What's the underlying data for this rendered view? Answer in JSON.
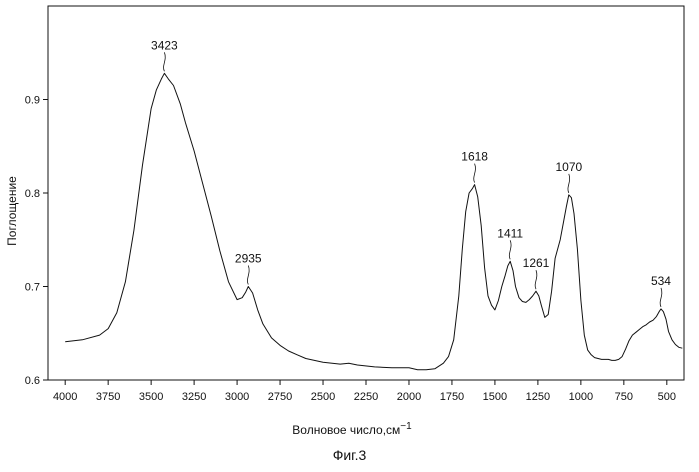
{
  "caption": "Фиг.3",
  "chart_data": {
    "type": "line",
    "title": "",
    "xlabel": "Волновое число,",
    "xlabel_unit": "см",
    "xlabel_unit_exp": "−1",
    "ylabel": "Поглощение",
    "xlim": [
      4100,
      400
    ],
    "ylim": [
      0.6,
      1.0
    ],
    "x_reversed": true,
    "grid": false,
    "x_ticks": [
      4000,
      3750,
      3500,
      3250,
      3000,
      2750,
      2500,
      2250,
      2000,
      1750,
      1500,
      1250,
      1000,
      750,
      500
    ],
    "x_tick_labels": [
      "4000",
      "3750",
      "3500",
      "3250",
      "3000",
      "2750",
      "2500",
      "2250",
      "2000",
      "1750",
      "1500",
      "1250",
      "1000",
      "750",
      "500"
    ],
    "y_ticks": [
      0.6,
      0.7,
      0.8,
      0.9
    ],
    "y_tick_labels": [
      "0.6",
      "0.7",
      "0.8",
      "0.9"
    ],
    "series": [
      {
        "color": "#111111",
        "x": [
          4000,
          3900,
          3800,
          3750,
          3700,
          3650,
          3600,
          3550,
          3500,
          3470,
          3440,
          3423,
          3400,
          3370,
          3330,
          3300,
          3250,
          3200,
          3150,
          3100,
          3050,
          3000,
          2970,
          2950,
          2935,
          2910,
          2880,
          2850,
          2800,
          2750,
          2700,
          2650,
          2600,
          2500,
          2400,
          2350,
          2300,
          2200,
          2100,
          2000,
          1950,
          1900,
          1850,
          1800,
          1770,
          1740,
          1710,
          1690,
          1670,
          1650,
          1630,
          1618,
          1600,
          1580,
          1560,
          1540,
          1520,
          1500,
          1480,
          1460,
          1440,
          1425,
          1411,
          1395,
          1380,
          1360,
          1340,
          1320,
          1300,
          1280,
          1261,
          1245,
          1230,
          1210,
          1190,
          1170,
          1150,
          1120,
          1100,
          1085,
          1070,
          1055,
          1040,
          1020,
          1000,
          980,
          960,
          940,
          920,
          900,
          880,
          860,
          840,
          820,
          800,
          780,
          760,
          740,
          720,
          700,
          680,
          660,
          640,
          620,
          600,
          580,
          560,
          545,
          534,
          520,
          505,
          490,
          470,
          450,
          430,
          410
        ],
        "y": [
          0.641,
          0.643,
          0.648,
          0.655,
          0.672,
          0.705,
          0.76,
          0.83,
          0.89,
          0.91,
          0.922,
          0.928,
          0.922,
          0.915,
          0.895,
          0.875,
          0.845,
          0.81,
          0.775,
          0.738,
          0.705,
          0.686,
          0.688,
          0.694,
          0.7,
          0.693,
          0.675,
          0.66,
          0.645,
          0.637,
          0.631,
          0.627,
          0.623,
          0.619,
          0.617,
          0.618,
          0.616,
          0.614,
          0.613,
          0.613,
          0.611,
          0.611,
          0.612,
          0.618,
          0.625,
          0.643,
          0.69,
          0.74,
          0.78,
          0.8,
          0.805,
          0.809,
          0.796,
          0.765,
          0.72,
          0.69,
          0.68,
          0.675,
          0.685,
          0.7,
          0.712,
          0.722,
          0.727,
          0.717,
          0.7,
          0.688,
          0.684,
          0.683,
          0.686,
          0.69,
          0.695,
          0.69,
          0.68,
          0.667,
          0.67,
          0.695,
          0.73,
          0.75,
          0.77,
          0.785,
          0.798,
          0.795,
          0.778,
          0.74,
          0.685,
          0.648,
          0.632,
          0.627,
          0.624,
          0.623,
          0.622,
          0.622,
          0.622,
          0.621,
          0.621,
          0.622,
          0.625,
          0.633,
          0.642,
          0.648,
          0.651,
          0.654,
          0.657,
          0.659,
          0.662,
          0.664,
          0.668,
          0.673,
          0.676,
          0.673,
          0.665,
          0.652,
          0.643,
          0.638,
          0.635,
          0.634
        ]
      }
    ],
    "annotations": [
      {
        "text": "3423",
        "x": 3423,
        "y": 0.928
      },
      {
        "text": "2935",
        "x": 2935,
        "y": 0.7
      },
      {
        "text": "1618",
        "x": 1618,
        "y": 0.809
      },
      {
        "text": "1411",
        "x": 1411,
        "y": 0.727
      },
      {
        "text": "1261",
        "x": 1261,
        "y": 0.695
      },
      {
        "text": "1070",
        "x": 1070,
        "y": 0.798
      },
      {
        "text": "534",
        "x": 534,
        "y": 0.676
      }
    ]
  }
}
